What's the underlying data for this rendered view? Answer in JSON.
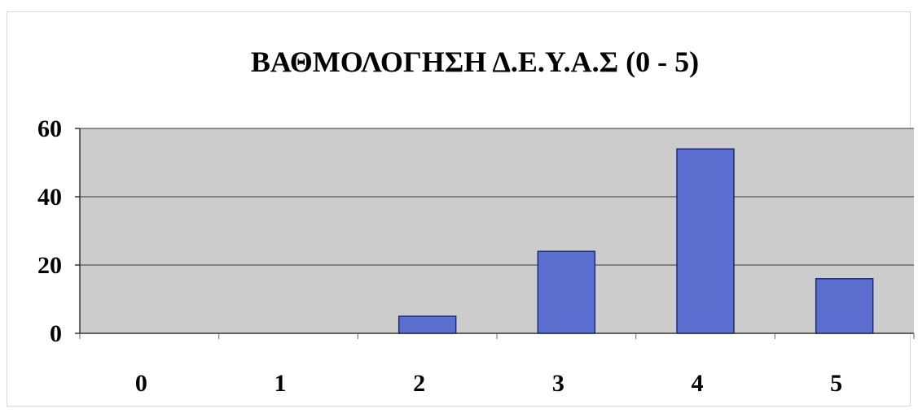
{
  "chart_data": {
    "type": "bar",
    "title": "ΒΑΘΜΟΛΟΓΗΣΗ Δ.Ε.Υ.Α.Σ (0 - 5)",
    "xlabel": "",
    "ylabel": "",
    "categories": [
      "0",
      "1",
      "2",
      "3",
      "4",
      "5"
    ],
    "values": [
      0,
      0,
      5,
      24,
      54,
      16
    ],
    "ylim": [
      0,
      60
    ],
    "yticks": [
      0,
      20,
      40,
      60
    ],
    "grid": true,
    "legend": "none",
    "colors": {
      "bar_fill": "#5b6fd0",
      "bar_stroke": "#1f2a6e",
      "plot_background": "#cccccc",
      "gridline": "#555555"
    }
  }
}
